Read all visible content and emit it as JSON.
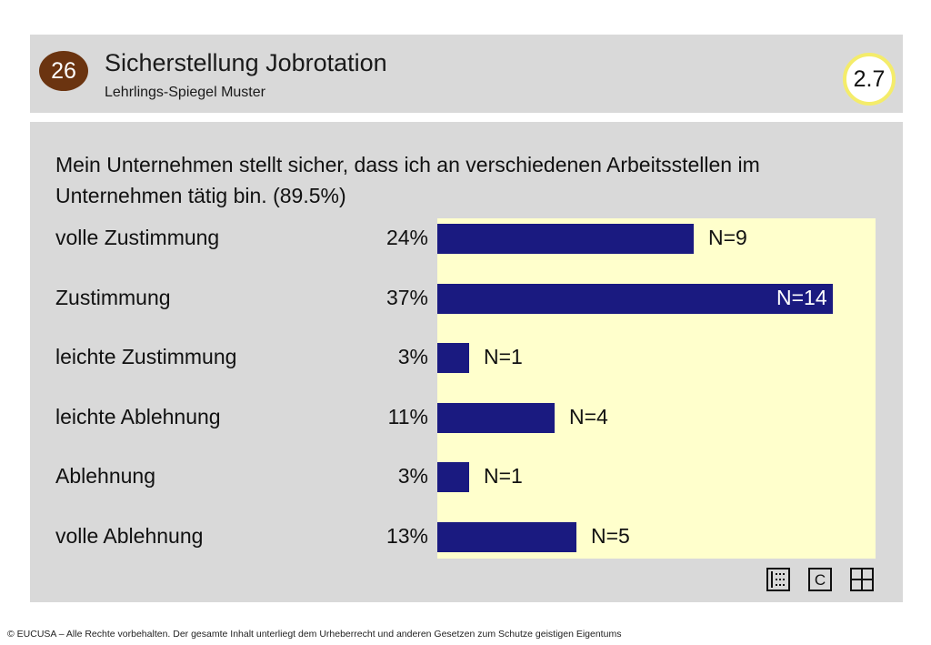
{
  "header": {
    "badge": "26",
    "title": "Sicherstellung Jobrotation",
    "subtitle": "Lehrlings-Spiegel Muster",
    "score": "2.7"
  },
  "question": "Mein Unternehmen stellt sicher, dass ich an verschiedenen Arbeitsstellen im Unternehmen tätig bin. (89.5%)",
  "chart_data": {
    "type": "bar",
    "orientation": "horizontal",
    "categories": [
      "volle Zustimmung",
      "Zustimmung",
      "leichte Zustimmung",
      "leichte Ablehnung",
      "Ablehnung",
      "volle Ablehnung"
    ],
    "percent_labels": [
      "24%",
      "37%",
      "3%",
      "11%",
      "3%",
      "13%"
    ],
    "values": [
      24,
      37,
      3,
      11,
      3,
      13
    ],
    "n_labels": [
      "N=9",
      "N=14",
      "N=1",
      "N=4",
      "N=1",
      "N=5"
    ],
    "counts": [
      9,
      14,
      1,
      4,
      1,
      5
    ],
    "bar_color": "#1a1a80",
    "background_color": "#ffffcc",
    "grid": false
  },
  "tools": [
    "list-view-icon",
    "c-icon",
    "grid-view-icon"
  ],
  "tool_c_label": "C",
  "footer": "© EUCUSA – Alle Rechte vorbehalten. Der gesamte Inhalt unterliegt dem Urheberrecht und anderen Gesetzen zum Schutze geistigen Eigentums"
}
